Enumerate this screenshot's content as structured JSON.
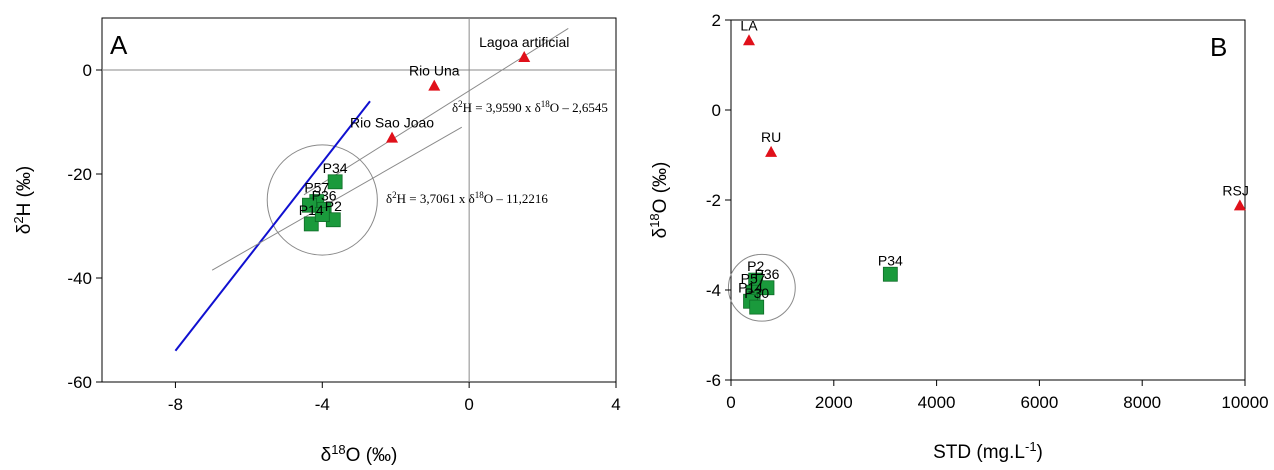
{
  "colors": {
    "triangle": "#e0101a",
    "square": "#1a9a3c",
    "square_edge": "#0d6b26",
    "regression": "#1010d0",
    "guide": "#8a8a8a",
    "frame": "#000000"
  },
  "chart_data": [
    {
      "type": "scatter",
      "panel": "A",
      "xlabel": "δ18O (‰)",
      "ylabel": "δ2H (‰)",
      "xlim": [
        -10,
        4
      ],
      "ylim": [
        -60,
        10
      ],
      "x_ticks": [
        "-8",
        "-4",
        "0",
        "4"
      ],
      "x_tick_values": [
        -8,
        -4,
        0,
        4
      ],
      "y_ticks": [
        "0",
        "-20",
        "-40",
        "-60"
      ],
      "y_tick_values": [
        0,
        -20,
        -40,
        -60
      ],
      "zero_lines": true,
      "surface_water": [
        {
          "label": "Lagoa artificial",
          "x": 1.5,
          "y": 2.5
        },
        {
          "label": "Rio Una",
          "x": -0.95,
          "y": -3.0
        },
        {
          "label": "Rio Sao Joao",
          "x": -2.1,
          "y": -13.0
        }
      ],
      "groundwater": [
        {
          "label": "P34",
          "x": -3.65,
          "y": -21.5
        },
        {
          "label": "P57",
          "x": -4.15,
          "y": -25.3
        },
        {
          "label": "P36",
          "x": -3.95,
          "y": -26.8
        },
        {
          "label": "P2",
          "x": -3.7,
          "y": -28.8
        },
        {
          "label": "P14",
          "x": -4.3,
          "y": -29.6
        },
        {
          "label": "",
          "x": -4.35,
          "y": -26.0
        },
        {
          "label": "",
          "x": -4.0,
          "y": -27.8
        }
      ],
      "lines": [
        {
          "kind": "regression",
          "x": [
            -8.0,
            -2.7
          ],
          "y": [
            -54.0,
            -6.0
          ]
        },
        {
          "kind": "guide",
          "label": "δ2H = 3,9590 x δ18O – 2,6545",
          "x": [
            -4.5,
            2.7
          ],
          "y": [
            -24.0,
            8.0
          ]
        },
        {
          "kind": "guide",
          "label": "δ2H = 3,7061 x δ18O – 11,2216",
          "x": [
            -7.0,
            -0.2
          ],
          "y": [
            -38.5,
            -11.0
          ]
        }
      ],
      "equation_1": {
        "pre": "δ",
        "sup1": "2",
        "mid": "H = 3,9590 x δ",
        "sup2": "18",
        "post": "O – 2,6545"
      },
      "equation_2": {
        "pre": "δ",
        "sup1": "2",
        "mid": "H = 3,7061 x δ",
        "sup2": "18",
        "post": "O – 11,2216"
      },
      "circle": {
        "cx": -4.0,
        "cy": -25.0,
        "r_x": 1.5
      }
    },
    {
      "type": "scatter",
      "panel": "B",
      "xlabel": "STD (mg.L-1)",
      "ylabel": "δ18O (‰)",
      "xlim": [
        0,
        10000
      ],
      "ylim": [
        -6,
        2
      ],
      "x_ticks": [
        "0",
        "2000",
        "4000",
        "6000",
        "8000",
        "10000"
      ],
      "x_tick_values": [
        0,
        2000,
        4000,
        6000,
        8000,
        10000
      ],
      "y_ticks": [
        "2",
        "0",
        "-2",
        "-4",
        "-6"
      ],
      "y_tick_values": [
        2,
        0,
        -2,
        -4,
        -6
      ],
      "surface_water": [
        {
          "label": "LA",
          "x": 350,
          "y": 1.55
        },
        {
          "label": "RU",
          "x": 780,
          "y": -0.93
        },
        {
          "label": "RSJ",
          "x": 9900,
          "y": -2.12
        }
      ],
      "groundwater": [
        {
          "label": "P34",
          "x": 3100,
          "y": -3.65
        },
        {
          "label": "P2",
          "x": 480,
          "y": -3.78
        },
        {
          "label": "P36",
          "x": 700,
          "y": -3.95
        },
        {
          "label": "P57",
          "x": 430,
          "y": -4.05
        },
        {
          "label": "P14",
          "x": 380,
          "y": -4.25
        },
        {
          "label": "P30",
          "x": 500,
          "y": -4.38
        }
      ],
      "circle": {
        "cx": 600,
        "cy": -3.95,
        "r_x": 650
      }
    }
  ],
  "panel_a": {
    "letter": "A",
    "xlabel_pre": "δ",
    "xlabel_sup": "18",
    "xlabel_post": "O (‰)",
    "ylabel_pre": "δ",
    "ylabel_sup": "2",
    "ylabel_post": "H (‰)"
  },
  "panel_b": {
    "letter": "B",
    "xlabel_pre": "STD (mg.L",
    "xlabel_sup": "-1",
    "xlabel_post": ")",
    "ylabel_pre": "δ",
    "ylabel_sup": "18",
    "ylabel_post": "O (‰)"
  }
}
